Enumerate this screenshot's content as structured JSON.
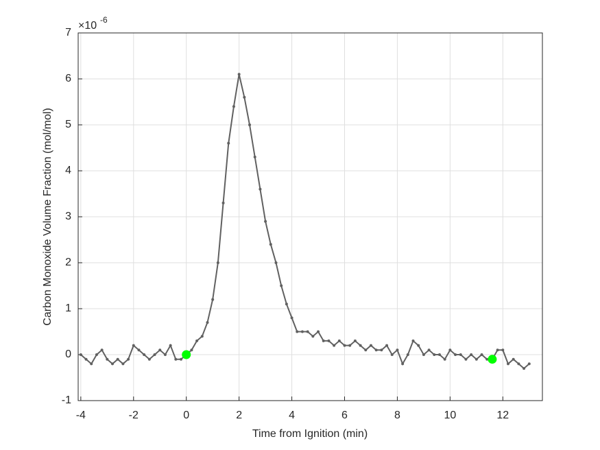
{
  "chart_data": {
    "type": "line",
    "xlabel": "Time from Ignition (min)",
    "ylabel": "Carbon Monoxide Volume Fraction (mol/mol)",
    "y_exponent_base": "×10",
    "y_exponent_power": "-6",
    "xlim": [
      -4.1,
      13.5
    ],
    "ylim": [
      -1,
      7
    ],
    "xticks": [
      -4,
      -2,
      0,
      2,
      4,
      6,
      8,
      10,
      12
    ],
    "yticks": [
      -1,
      0,
      1,
      2,
      3,
      4,
      5,
      6,
      7
    ],
    "grid": true,
    "series": [
      {
        "color": "#606060",
        "x": [
          -4.0,
          -3.8,
          -3.6,
          -3.4,
          -3.2,
          -3.0,
          -2.8,
          -2.6,
          -2.4,
          -2.2,
          -2.0,
          -1.8,
          -1.6,
          -1.4,
          -1.2,
          -1.0,
          -0.8,
          -0.6,
          -0.4,
          -0.2,
          0.0,
          0.2,
          0.4,
          0.6,
          0.8,
          1.0,
          1.2,
          1.4,
          1.6,
          1.8,
          2.0,
          2.2,
          2.4,
          2.6,
          2.8,
          3.0,
          3.2,
          3.4,
          3.6,
          3.8,
          4.0,
          4.2,
          4.4,
          4.6,
          4.8,
          5.0,
          5.2,
          5.4,
          5.6,
          5.8,
          6.0,
          6.2,
          6.4,
          6.6,
          6.8,
          7.0,
          7.2,
          7.4,
          7.6,
          7.8,
          8.0,
          8.2,
          8.4,
          8.6,
          8.8,
          9.0,
          9.2,
          9.4,
          9.6,
          9.8,
          10.0,
          10.2,
          10.4,
          10.6,
          10.8,
          11.0,
          11.2,
          11.4,
          11.6,
          11.8,
          12.0,
          12.2,
          12.4,
          12.6,
          12.8,
          13.0
        ],
        "values": [
          0,
          -0.1,
          -0.2,
          0,
          0.1,
          -0.1,
          -0.2,
          -0.1,
          -0.2,
          -0.1,
          0.2,
          0.1,
          0,
          -0.1,
          0,
          0.1,
          0,
          0.2,
          -0.1,
          -0.1,
          0,
          0.1,
          0.3,
          0.4,
          0.7,
          1.2,
          2.0,
          3.3,
          4.6,
          5.4,
          6.1,
          5.6,
          5.0,
          4.3,
          3.6,
          2.9,
          2.4,
          2.0,
          1.5,
          1.1,
          0.8,
          0.5,
          0.5,
          0.5,
          0.4,
          0.5,
          0.3,
          0.3,
          0.2,
          0.3,
          0.2,
          0.2,
          0.3,
          0.2,
          0.1,
          0.2,
          0.1,
          0.1,
          0.2,
          0,
          0.1,
          -0.2,
          0,
          0.3,
          0.2,
          0,
          0.1,
          0,
          0,
          -0.1,
          0.1,
          0,
          0,
          -0.1,
          0,
          -0.1,
          0,
          -0.1,
          -0.1,
          0.1,
          0.1,
          -0.2,
          -0.1,
          -0.2,
          -0.3,
          -0.2
        ]
      },
      {
        "color": "#00ff00",
        "x": [
          0,
          11.6
        ],
        "values": [
          0,
          -0.1
        ],
        "markers_only": true
      }
    ]
  }
}
